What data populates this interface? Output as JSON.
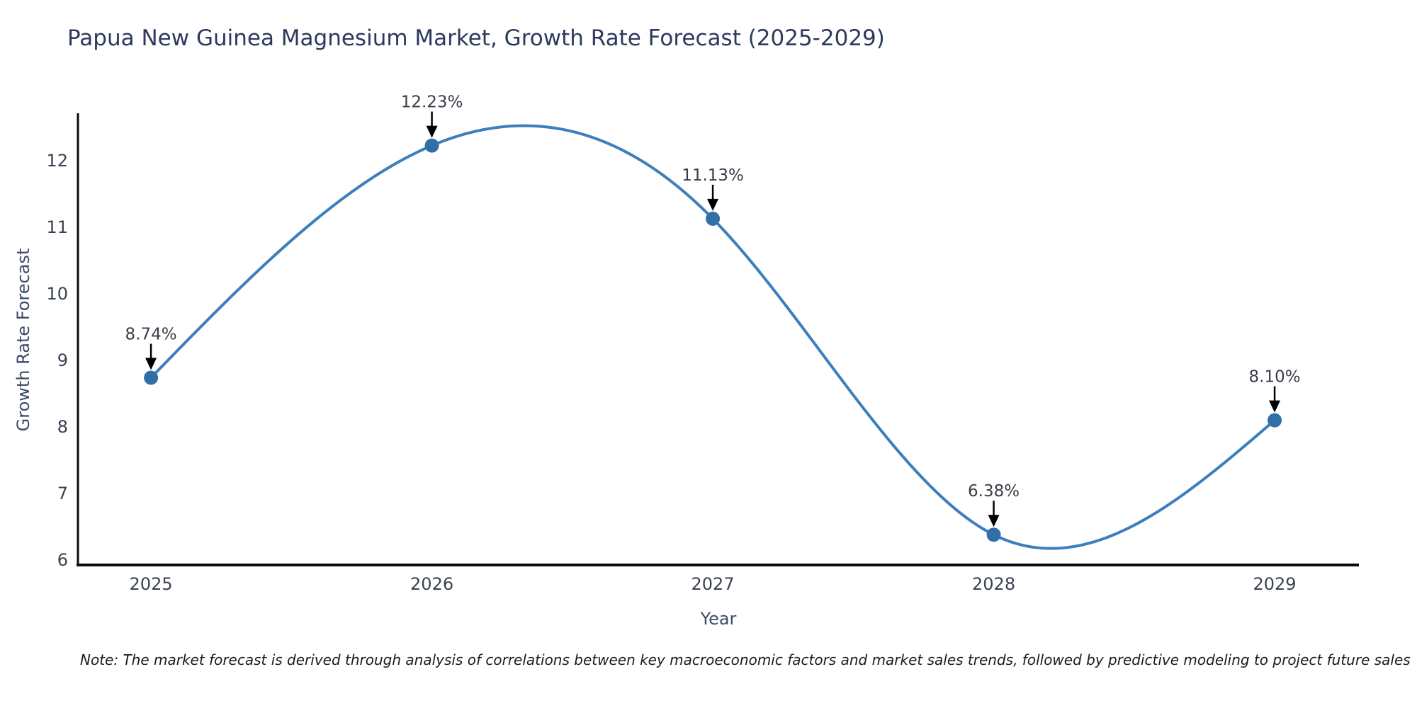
{
  "title": "Papua New Guinea Magnesium Market, Growth Rate Forecast (2025-2029)",
  "note": "Note: The market forecast is derived through analysis of correlations between key macroeconomic factors and market sales trends, followed by predictive modeling to project future sales",
  "chart_data": {
    "type": "line",
    "title": "Papua New Guinea Magnesium Market, Growth Rate Forecast (2025-2029)",
    "x": [
      2025,
      2026,
      2027,
      2028,
      2029
    ],
    "values": [
      8.74,
      12.23,
      11.13,
      6.38,
      8.1
    ],
    "point_labels": [
      "8.74%",
      "12.23%",
      "11.13%",
      "6.38%",
      "8.10%"
    ],
    "xlabel": "Year",
    "ylabel": "Growth Rate Forecast",
    "x_ticks": [
      2025,
      2026,
      2027,
      2028,
      2029
    ],
    "y_ticks": [
      6,
      7,
      8,
      9,
      10,
      11,
      12
    ],
    "xlim": [
      2024.74,
      2029.3
    ],
    "ylim": [
      5.925,
      12.715
    ],
    "grid": false,
    "legend": null,
    "smooth": true,
    "line_color": "#3d7ebc",
    "marker_color": "#336fa7",
    "annotation_color": "#000000"
  },
  "colors": {
    "background": "#ffffff",
    "title_text": "#2d3a5e",
    "axis_label_text": "#3e4a66",
    "tick_text": "#3a4252",
    "annotation_text": "#383e48",
    "spine": "#0a0a0a",
    "note_text": "#1c1c1c"
  }
}
